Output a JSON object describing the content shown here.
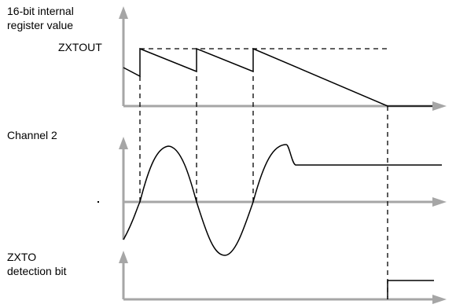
{
  "labels": {
    "register_title_line1": "16-bit internal",
    "register_title_line2": "register value",
    "zxtout": "ZXTOUT",
    "channel2": "Channel 2",
    "zxto_line1": "ZXTO",
    "zxto_line2": "detection bit"
  },
  "colors": {
    "axis": "#a6a6a6",
    "signal": "#000000",
    "dashed": "#000000"
  }
}
